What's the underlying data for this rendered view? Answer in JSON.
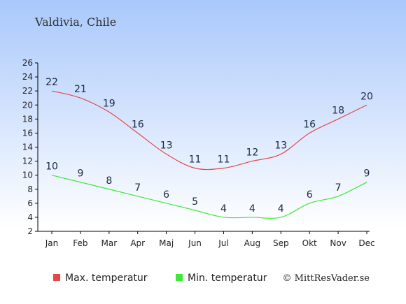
{
  "chart_data": {
    "type": "line",
    "title": "Valdivia, Chile",
    "categories": [
      "Jan",
      "Feb",
      "Mar",
      "Apr",
      "Maj",
      "Jun",
      "Jul",
      "Aug",
      "Sep",
      "Okt",
      "Nov",
      "Dec"
    ],
    "series": [
      {
        "name": "Max. temperatur",
        "color": "#e8474a",
        "values": [
          22,
          21,
          19,
          16,
          13,
          11,
          11,
          12,
          13,
          16,
          18,
          20
        ]
      },
      {
        "name": "Min. temperatur",
        "color": "#3ee83a",
        "values": [
          10,
          9,
          8,
          7,
          6,
          5,
          4,
          4,
          4,
          6,
          7,
          9
        ]
      }
    ],
    "yticks": [
      2,
      4,
      6,
      8,
      10,
      12,
      14,
      16,
      18,
      20,
      22,
      24,
      26
    ],
    "ylim": [
      2,
      26
    ],
    "grid": false,
    "legend": "bottom-left"
  },
  "credit": "© MittResVader.se",
  "colors": {
    "background_top": "#a9c8fb",
    "background_bottom": "#ffffff"
  }
}
